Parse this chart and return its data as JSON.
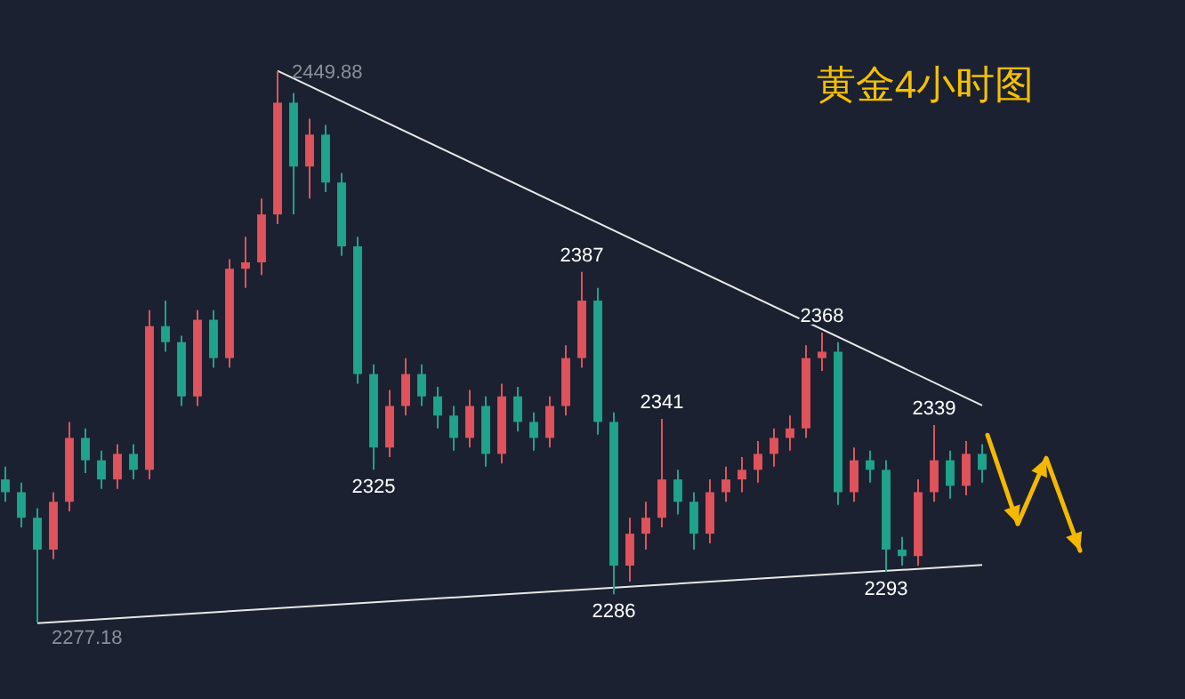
{
  "chart_data": {
    "type": "candlestick",
    "title": "黄金4小时图",
    "grid": false,
    "categories": [
      null,
      null,
      null,
      null,
      null,
      null,
      null,
      null,
      null,
      null,
      null,
      null,
      null,
      null,
      null,
      null,
      null,
      null,
      null,
      null,
      null,
      null,
      null,
      null,
      null,
      null,
      null,
      null,
      null,
      null,
      null,
      null,
      null,
      null,
      null,
      null,
      null,
      null,
      null,
      null,
      null,
      null,
      null,
      null,
      null,
      null,
      null,
      null,
      null,
      null,
      null,
      null,
      null,
      null,
      null,
      null,
      null,
      null,
      null,
      null,
      null,
      null
    ],
    "ohlc": [
      [
        2322,
        2326,
        2315,
        2318
      ],
      [
        2318,
        2321,
        2307,
        2310
      ],
      [
        2310,
        2313,
        2277.18,
        2300
      ],
      [
        2300,
        2318,
        2297,
        2315
      ],
      [
        2315,
        2340,
        2312,
        2335
      ],
      [
        2335,
        2338,
        2324,
        2328
      ],
      [
        2328,
        2331,
        2319,
        2322
      ],
      [
        2322,
        2333,
        2319,
        2330
      ],
      [
        2330,
        2333,
        2322,
        2325
      ],
      [
        2325,
        2375,
        2322,
        2370
      ],
      [
        2370,
        2378,
        2362,
        2365
      ],
      [
        2365,
        2367,
        2345,
        2348
      ],
      [
        2348,
        2375,
        2345,
        2372
      ],
      [
        2372,
        2375,
        2357,
        2360
      ],
      [
        2360,
        2391,
        2357,
        2388
      ],
      [
        2388,
        2398,
        2382,
        2390
      ],
      [
        2390,
        2410,
        2386,
        2405
      ],
      [
        2405,
        2449.88,
        2402,
        2440
      ],
      [
        2440,
        2443,
        2405,
        2420
      ],
      [
        2420,
        2435,
        2410,
        2430
      ],
      [
        2430,
        2433,
        2412,
        2415
      ],
      [
        2415,
        2418,
        2392,
        2395
      ],
      [
        2395,
        2398,
        2352,
        2355
      ],
      [
        2355,
        2358,
        2325,
        2332
      ],
      [
        2332,
        2350,
        2329,
        2345
      ],
      [
        2345,
        2360,
        2342,
        2355
      ],
      [
        2355,
        2358,
        2345,
        2348
      ],
      [
        2348,
        2351,
        2338,
        2342
      ],
      [
        2342,
        2345,
        2331,
        2335
      ],
      [
        2335,
        2350,
        2332,
        2345
      ],
      [
        2345,
        2348,
        2326,
        2330
      ],
      [
        2330,
        2352,
        2327,
        2348
      ],
      [
        2348,
        2351,
        2337,
        2340
      ],
      [
        2340,
        2343,
        2331,
        2335
      ],
      [
        2335,
        2348,
        2332,
        2345
      ],
      [
        2345,
        2364,
        2342,
        2360
      ],
      [
        2360,
        2387,
        2357,
        2378
      ],
      [
        2378,
        2382,
        2336,
        2340
      ],
      [
        2340,
        2343,
        2286,
        2295
      ],
      [
        2295,
        2310,
        2290,
        2305
      ],
      [
        2305,
        2315,
        2300,
        2310
      ],
      [
        2310,
        2341,
        2307,
        2322
      ],
      [
        2322,
        2325,
        2311,
        2315
      ],
      [
        2315,
        2318,
        2300,
        2305
      ],
      [
        2305,
        2322,
        2302,
        2318
      ],
      [
        2318,
        2326,
        2315,
        2322
      ],
      [
        2322,
        2329,
        2318,
        2325
      ],
      [
        2325,
        2334,
        2321,
        2330
      ],
      [
        2330,
        2338,
        2326,
        2335
      ],
      [
        2335,
        2342,
        2331,
        2338
      ],
      [
        2338,
        2364,
        2335,
        2360
      ],
      [
        2360,
        2368,
        2356,
        2362
      ],
      [
        2362,
        2365,
        2314,
        2318
      ],
      [
        2318,
        2332,
        2315,
        2328
      ],
      [
        2328,
        2331,
        2321,
        2325
      ],
      [
        2325,
        2328,
        2293,
        2300
      ],
      [
        2300,
        2304,
        2295,
        2298
      ],
      [
        2298,
        2322,
        2295,
        2318
      ],
      [
        2318,
        2339,
        2315,
        2328
      ],
      [
        2328,
        2331,
        2316,
        2320
      ],
      [
        2320,
        2334,
        2317,
        2330
      ],
      [
        2330,
        2333,
        2321,
        2325
      ]
    ],
    "colors": [
      "#1fa38c",
      "#1fa38c",
      "#1fa38c",
      "#e0525c",
      "#e0525c",
      "#1fa38c",
      "#1fa38c",
      "#e0525c",
      "#1fa38c",
      "#e0525c",
      "#1fa38c",
      "#1fa38c",
      "#e0525c",
      "#1fa38c",
      "#e0525c",
      "#e0525c",
      "#e0525c",
      "#e0525c",
      "#1fa38c",
      "#e0525c",
      "#1fa38c",
      "#1fa38c",
      "#1fa38c",
      "#1fa38c",
      "#e0525c",
      "#e0525c",
      "#1fa38c",
      "#1fa38c",
      "#1fa38c",
      "#e0525c",
      "#1fa38c",
      "#e0525c",
      "#1fa38c",
      "#1fa38c",
      "#e0525c",
      "#e0525c",
      "#e0525c",
      "#1fa38c",
      "#1fa38c",
      "#e0525c",
      "#e0525c",
      "#e0525c",
      "#1fa38c",
      "#1fa38c",
      "#e0525c",
      "#e0525c",
      "#e0525c",
      "#e0525c",
      "#e0525c",
      "#e0525c",
      "#e0525c",
      "#e0525c",
      "#1fa38c",
      "#e0525c",
      "#1fa38c",
      "#1fa38c",
      "#1fa38c",
      "#e0525c",
      "#e0525c",
      "#1fa38c",
      "#e0525c",
      "#1fa38c"
    ],
    "series": [
      {
        "type": "line",
        "color": "#e8e8e8",
        "values": [
          null,
          null,
          null,
          null,
          null,
          null,
          null,
          null,
          null,
          null,
          null,
          null,
          null,
          null,
          null,
          null,
          null,
          2450,
          null,
          null,
          null,
          null,
          null,
          null,
          null,
          null,
          null,
          null,
          null,
          null,
          null,
          null,
          null,
          null,
          null,
          null,
          null,
          null,
          null,
          null,
          null,
          null,
          null,
          null,
          null,
          null,
          null,
          null,
          null,
          null,
          null,
          null,
          null,
          null,
          null,
          null,
          null,
          null,
          null,
          null,
          null,
          2345.2
        ]
      },
      {
        "type": "line",
        "color": "#e8e8e8",
        "values": [
          null,
          null,
          2277,
          null,
          null,
          null,
          null,
          null,
          null,
          null,
          null,
          null,
          null,
          null,
          null,
          null,
          null,
          null,
          null,
          null,
          null,
          null,
          null,
          null,
          null,
          null,
          null,
          null,
          null,
          null,
          null,
          null,
          null,
          null,
          null,
          null,
          null,
          null,
          null,
          null,
          null,
          null,
          null,
          null,
          null,
          null,
          null,
          null,
          null,
          null,
          null,
          null,
          null,
          null,
          null,
          null,
          null,
          null,
          null,
          null,
          null,
          2295.2
        ]
      }
    ],
    "annotations": [
      "2449.88",
      "2277.18",
      {
        "text": "2387",
        "y": 2387
      },
      {
        "text": "2368",
        "y": 2368
      },
      {
        "text": "2341",
        "y": 2341
      },
      {
        "text": "2339",
        "y": 2339
      },
      {
        "text": "2325",
        "y": 2325
      },
      {
        "text": "2286",
        "y": 2286
      },
      {
        "text": "2293",
        "y": 2293
      }
    ]
  }
}
